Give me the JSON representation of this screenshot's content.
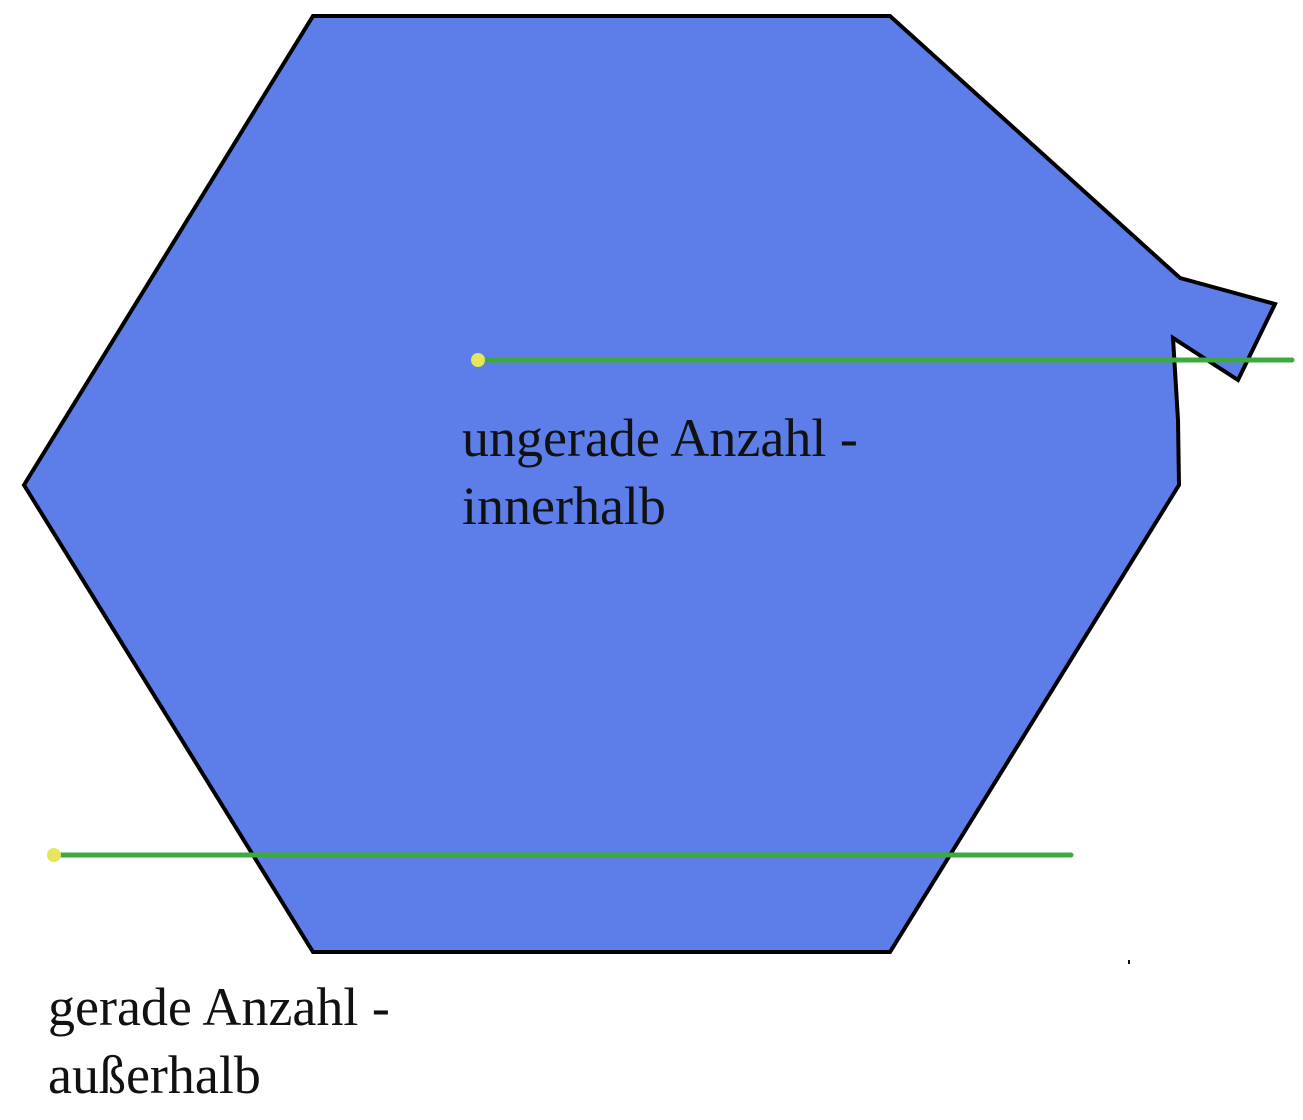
{
  "colors": {
    "polygon_fill": "#5d7ee8",
    "polygon_stroke": "#000000",
    "ray": "#3caa3c",
    "start_point": "#e6e65a",
    "text": "#111111",
    "background": "#ffffff"
  },
  "captions": {
    "inside": {
      "line1": "ungerade Anzahl -",
      "line2": "innerhalb"
    },
    "outside": {
      "line1": "gerade Anzahl -",
      "line2": "außerhalb"
    }
  }
}
